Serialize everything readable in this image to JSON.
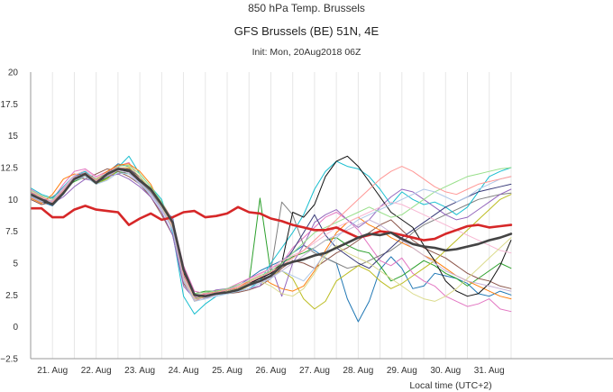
{
  "header": {
    "title": "850 hPa Temp. Brussels",
    "subtitle": "GFS Brussels (BE) 51N, 4E",
    "init": "Init: Mon, 20Aug2018 06Z"
  },
  "chart_data": {
    "type": "line",
    "title": "850 hPa Temp. Brussels",
    "subtitle": "GFS Brussels (BE) 51N, 4E",
    "xlabel": "Local time (UTC+2)",
    "ylabel": "",
    "ylim": [
      -2.5,
      20
    ],
    "yticks": [
      "−2.5",
      "0",
      "2.5",
      "5",
      "7.5",
      "10",
      "12.5",
      "15",
      "17.5",
      "20"
    ],
    "ytick_values": [
      -2.5,
      0,
      2.5,
      5,
      7.5,
      10,
      12.5,
      15,
      17.5,
      20
    ],
    "xlim_hours": [
      10,
      330
    ],
    "xticks": [
      {
        "label": "21. Aug",
        "hour": 22
      },
      {
        "label": "22. Aug",
        "hour": 46
      },
      {
        "label": "23. Aug",
        "hour": 70
      },
      {
        "label": "24. Aug",
        "hour": 94
      },
      {
        "label": "25. Aug",
        "hour": 118
      },
      {
        "label": "26. Aug",
        "hour": 142
      },
      {
        "label": "27. Aug",
        "hour": 166
      },
      {
        "label": "28. Aug",
        "hour": 190
      },
      {
        "label": "29. Aug",
        "hour": 214
      },
      {
        "label": "30. Aug",
        "hour": 238
      },
      {
        "label": "31. Aug",
        "hour": 262
      }
    ],
    "grid": {
      "vertical": true,
      "horizontal": false
    },
    "x_hours": [
      10,
      16,
      22,
      28,
      34,
      40,
      46,
      52,
      58,
      64,
      70,
      76,
      82,
      88,
      94,
      100,
      106,
      112,
      118,
      124,
      130,
      136,
      142,
      148,
      154,
      160,
      166,
      172,
      178,
      184,
      190,
      196,
      202,
      208,
      214,
      220,
      226,
      232,
      238,
      244,
      250,
      256,
      262,
      268,
      274
    ],
    "series": [
      {
        "color": "#d62728",
        "width": 2.6,
        "values": [
          9.3,
          9.3,
          8.6,
          8.6,
          9.2,
          9.5,
          9.2,
          9.1,
          9.0,
          8.0,
          8.5,
          8.9,
          8.4,
          8.6,
          9.0,
          9.1,
          8.6,
          8.7,
          8.9,
          9.4,
          9.0,
          8.9,
          8.5,
          8.3,
          8.0,
          7.8,
          7.6,
          7.6,
          7.8,
          7.4,
          7.0,
          7.2,
          7.5,
          7.4,
          7.2,
          7.0,
          6.8,
          6.9,
          7.3,
          7.6,
          7.9,
          8.0,
          7.8,
          7.9,
          8.0
        ]
      },
      {
        "color": "#444444",
        "width": 2.6,
        "values": [
          10.4,
          10.0,
          9.6,
          10.5,
          11.6,
          12.0,
          11.3,
          12.0,
          12.4,
          12.3,
          11.5,
          10.8,
          9.6,
          8.2,
          4.5,
          2.5,
          2.4,
          2.6,
          2.7,
          2.9,
          3.3,
          3.6,
          4.0,
          4.8,
          5.1,
          5.3,
          5.6,
          5.8,
          6.2,
          6.6,
          7.0,
          7.3,
          7.2,
          7.4,
          6.9,
          6.5,
          6.3,
          6.2,
          6.0,
          6.1,
          6.3,
          6.5,
          6.8,
          7.0,
          7.3
        ]
      },
      {
        "color": "#1f77b4",
        "width": 1,
        "values": [
          10.2,
          9.8,
          9.5,
          10.4,
          11.8,
          12.1,
          11.6,
          12.1,
          12.8,
          12.6,
          11.2,
          10.4,
          9.2,
          8.6,
          3.8,
          2.3,
          2.5,
          2.7,
          3.0,
          3.2,
          3.8,
          4.4,
          4.8,
          5.2,
          5.8,
          6.4,
          6.0,
          5.4,
          5.0,
          2.2,
          0.4,
          2.0,
          4.5,
          5.5,
          4.6,
          3.0,
          3.2,
          4.2,
          4.0,
          3.8,
          3.4,
          2.6,
          2.4,
          2.8,
          2.5
        ]
      },
      {
        "color": "#2ca02c",
        "width": 1,
        "values": [
          10.6,
          10.2,
          9.8,
          10.8,
          11.4,
          11.8,
          11.2,
          11.7,
          12.2,
          12.0,
          11.8,
          10.6,
          9.6,
          7.8,
          4.2,
          2.6,
          2.8,
          2.8,
          2.9,
          3.1,
          3.5,
          10.1,
          4.2,
          5.0,
          5.5,
          5.8,
          6.2,
          6.8,
          7.0,
          6.4,
          6.0,
          5.8,
          4.8,
          3.6,
          4.0,
          4.6,
          5.2,
          4.8,
          4.2,
          3.8,
          3.2,
          3.8,
          4.4,
          5.0,
          4.6
        ]
      },
      {
        "color": "#8c564b",
        "width": 1,
        "values": [
          10.0,
          9.6,
          9.8,
          10.6,
          11.8,
          11.6,
          12.0,
          12.4,
          12.2,
          11.8,
          11.2,
          10.2,
          8.8,
          7.2,
          3.4,
          2.2,
          2.3,
          2.8,
          2.6,
          2.7,
          2.9,
          3.2,
          3.8,
          4.6,
          5.2,
          5.0,
          4.6,
          5.2,
          5.8,
          6.2,
          6.8,
          7.4,
          8.0,
          8.4,
          7.6,
          6.8,
          6.2,
          5.8,
          5.4,
          4.8,
          4.2,
          3.8,
          3.6,
          3.2,
          3.0
        ]
      },
      {
        "color": "#e377c2",
        "width": 1,
        "values": [
          10.8,
          10.3,
          10.0,
          11.2,
          12.2,
          12.4,
          11.8,
          12.2,
          12.6,
          12.9,
          11.6,
          10.8,
          9.8,
          8.4,
          4.8,
          2.8,
          2.6,
          2.7,
          3.0,
          3.4,
          3.8,
          4.2,
          4.6,
          5.0,
          6.2,
          7.0,
          7.8,
          8.6,
          9.0,
          8.4,
          7.6,
          6.4,
          5.2,
          4.8,
          5.4,
          4.2,
          3.6,
          3.2,
          2.4,
          2.0,
          1.6,
          1.8,
          2.2,
          1.4,
          1.2
        ]
      },
      {
        "color": "#7f7f7f",
        "width": 1,
        "values": [
          10.3,
          9.9,
          10.2,
          10.8,
          11.6,
          11.8,
          11.4,
          11.8,
          12.0,
          12.2,
          11.4,
          10.6,
          9.4,
          8.0,
          4.0,
          2.4,
          2.2,
          2.6,
          2.8,
          3.0,
          3.4,
          3.8,
          4.4,
          9.8,
          8.8,
          6.4,
          5.8,
          5.4,
          5.0,
          4.6,
          4.8,
          5.2,
          5.6,
          6.0,
          6.6,
          7.4,
          8.0,
          8.4,
          8.8,
          9.2,
          9.6,
          10.0,
          10.2,
          10.4,
          10.5
        ]
      },
      {
        "color": "#bcbd22",
        "width": 1,
        "values": [
          10.5,
          10.1,
          9.6,
          10.5,
          11.5,
          12.0,
          11.2,
          11.6,
          12.3,
          12.5,
          11.6,
          10.9,
          9.8,
          8.3,
          4.4,
          2.2,
          2.4,
          2.9,
          2.7,
          2.8,
          3.2,
          3.6,
          4.0,
          4.4,
          3.8,
          2.2,
          1.4,
          2.0,
          3.6,
          4.2,
          4.8,
          4.4,
          3.6,
          3.0,
          3.4,
          4.0,
          4.6,
          5.2,
          6.0,
          6.8,
          7.6,
          8.4,
          9.2,
          10.0,
          10.4
        ]
      },
      {
        "color": "#17becf",
        "width": 1,
        "values": [
          10.9,
          10.4,
          10.1,
          11.0,
          11.9,
          12.2,
          11.5,
          11.9,
          12.5,
          13.4,
          12.0,
          11.0,
          10.0,
          7.4,
          2.4,
          1.0,
          1.8,
          2.4,
          2.6,
          2.8,
          3.0,
          3.6,
          5.0,
          6.2,
          7.4,
          8.8,
          10.8,
          12.2,
          13.0,
          12.6,
          12.4,
          11.8,
          10.8,
          9.6,
          10.6,
          10.0,
          9.6,
          9.8,
          9.4,
          8.8,
          9.4,
          10.6,
          11.8,
          12.2,
          12.5
        ]
      },
      {
        "color": "#ff7f0e",
        "width": 1,
        "values": [
          10.1,
          9.7,
          10.4,
          11.6,
          12.0,
          11.9,
          11.6,
          12.2,
          12.7,
          12.8,
          12.2,
          11.2,
          9.4,
          7.8,
          3.6,
          2.0,
          2.4,
          2.6,
          2.8,
          3.1,
          3.6,
          4.0,
          3.4,
          3.0,
          2.8,
          3.2,
          4.4,
          6.0,
          7.4,
          8.2,
          8.6,
          8.0,
          7.6,
          7.0,
          6.6,
          6.2,
          5.6,
          5.2,
          4.6,
          4.0,
          3.6,
          3.2,
          2.8,
          2.4,
          2.2
        ]
      },
      {
        "color": "#9467bd",
        "width": 1,
        "values": [
          10.4,
          10.0,
          9.7,
          10.2,
          11.0,
          11.6,
          11.4,
          11.8,
          12.0,
          11.6,
          11.0,
          10.2,
          9.0,
          7.2,
          3.2,
          2.2,
          2.6,
          2.9,
          3.0,
          2.8,
          3.0,
          3.2,
          4.8,
          2.4,
          5.0,
          6.4,
          8.2,
          8.8,
          9.2,
          8.4,
          7.8,
          8.4,
          9.4,
          10.2,
          10.8,
          10.6,
          10.0,
          9.4,
          8.8,
          8.4,
          8.6,
          9.2,
          9.8,
          10.4,
          10.8
        ]
      },
      {
        "color": "#393b79",
        "width": 1,
        "values": [
          10.6,
          10.0,
          9.9,
          10.9,
          11.8,
          12.1,
          11.5,
          11.9,
          12.4,
          12.4,
          11.8,
          10.8,
          9.6,
          8.0,
          4.0,
          2.4,
          2.5,
          2.7,
          2.8,
          3.0,
          3.4,
          3.8,
          4.2,
          4.8,
          6.0,
          7.4,
          8.8,
          7.2,
          6.2,
          5.6,
          5.0,
          4.6,
          5.4,
          6.2,
          7.0,
          7.6,
          8.2,
          8.8,
          9.4,
          9.8,
          10.2,
          10.6,
          10.8,
          11.0,
          11.2
        ]
      },
      {
        "color": "#111111",
        "width": 1,
        "values": [
          10.2,
          9.8,
          9.7,
          10.6,
          11.6,
          12.0,
          11.3,
          11.8,
          12.3,
          12.2,
          11.4,
          10.8,
          9.6,
          8.1,
          4.2,
          2.3,
          2.4,
          2.6,
          2.8,
          3.0,
          3.4,
          3.8,
          4.2,
          5.0,
          9.0,
          8.6,
          9.6,
          11.8,
          13.0,
          13.4,
          12.6,
          11.4,
          10.2,
          9.0,
          8.4,
          7.8,
          6.4,
          5.2,
          3.6,
          2.8,
          2.4,
          2.6,
          3.4,
          4.8,
          6.8
        ]
      },
      {
        "color": "#98df8a",
        "width": 1,
        "values": [
          10.7,
          10.3,
          10.0,
          10.8,
          11.7,
          12.0,
          11.6,
          12.0,
          12.6,
          12.7,
          12.0,
          11.0,
          9.8,
          8.2,
          4.6,
          2.6,
          2.7,
          2.8,
          3.0,
          3.3,
          3.6,
          4.0,
          4.4,
          5.0,
          5.8,
          6.6,
          7.4,
          7.8,
          8.2,
          8.6,
          9.0,
          9.4,
          9.0,
          8.6,
          8.8,
          9.4,
          10.0,
          10.6,
          11.0,
          11.4,
          11.8,
          12.0,
          12.2,
          12.4,
          12.5
        ]
      },
      {
        "color": "#aec7e8",
        "width": 1,
        "values": [
          10.3,
          9.9,
          9.8,
          10.7,
          11.5,
          11.8,
          11.2,
          11.5,
          12.1,
          12.0,
          11.2,
          10.4,
          9.2,
          7.6,
          3.6,
          2.0,
          2.2,
          2.4,
          2.6,
          2.8,
          3.0,
          3.4,
          3.8,
          4.4,
          4.0,
          3.6,
          4.6,
          5.8,
          7.0,
          7.8,
          8.4,
          8.8,
          9.2,
          9.6,
          10.0,
          10.4,
          10.8,
          10.6,
          10.2,
          9.8,
          10.2,
          10.8,
          11.2,
          11.6,
          11.8
        ]
      },
      {
        "color": "#f7b6d2",
        "width": 1,
        "values": [
          10.5,
          10.1,
          9.9,
          10.9,
          11.9,
          12.3,
          11.7,
          12.1,
          12.5,
          12.3,
          11.6,
          10.7,
          9.5,
          7.9,
          3.9,
          2.3,
          2.5,
          2.7,
          2.9,
          3.2,
          3.7,
          4.1,
          4.6,
          5.2,
          5.6,
          6.0,
          6.6,
          7.2,
          7.8,
          8.2,
          8.6,
          9.0,
          9.4,
          9.8,
          9.6,
          9.2,
          8.8,
          8.4,
          8.0,
          7.6,
          7.2,
          6.8,
          6.4,
          6.0,
          5.8
        ]
      },
      {
        "color": "#dbdb8d",
        "width": 1,
        "values": [
          10.4,
          10.0,
          9.6,
          10.6,
          11.6,
          12.0,
          11.4,
          11.9,
          12.4,
          12.6,
          11.8,
          10.8,
          9.4,
          7.8,
          3.8,
          2.2,
          2.4,
          2.6,
          2.8,
          3.0,
          3.4,
          3.6,
          3.2,
          2.6,
          2.4,
          3.0,
          4.2,
          5.6,
          6.4,
          5.8,
          5.4,
          5.0,
          4.4,
          3.8,
          3.2,
          2.6,
          2.2,
          2.0,
          2.4,
          3.0,
          3.8,
          4.6,
          5.4,
          6.2,
          7.0
        ]
      },
      {
        "color": "#ff9896",
        "width": 1,
        "values": [
          10.6,
          10.2,
          9.8,
          10.7,
          11.7,
          12.1,
          11.5,
          12.0,
          12.5,
          12.4,
          11.6,
          10.8,
          9.6,
          8.0,
          4.1,
          2.4,
          2.6,
          2.7,
          2.9,
          3.1,
          3.5,
          3.9,
          4.3,
          4.8,
          5.4,
          6.0,
          6.8,
          7.6,
          8.4,
          9.2,
          10.0,
          10.8,
          11.6,
          12.2,
          12.6,
          12.2,
          11.6,
          11.0,
          10.6,
          10.4,
          10.8,
          11.2,
          11.4,
          11.6,
          11.8
        ]
      },
      {
        "color": "#c5b0d5",
        "width": 1,
        "values": [
          10.2,
          9.8,
          9.9,
          10.8,
          11.8,
          12.0,
          11.4,
          11.8,
          12.3,
          12.1,
          11.3,
          10.5,
          9.3,
          7.7,
          3.7,
          2.1,
          2.3,
          2.5,
          2.7,
          2.9,
          3.2,
          3.5,
          3.9,
          4.4,
          5.0,
          5.6,
          6.2,
          6.8,
          7.2,
          7.6,
          8.0,
          8.4,
          8.0,
          7.4,
          6.8,
          6.2,
          5.6,
          5.0,
          4.4,
          4.0,
          3.6,
          3.4,
          3.2,
          3.0,
          2.8
        ]
      }
    ]
  }
}
